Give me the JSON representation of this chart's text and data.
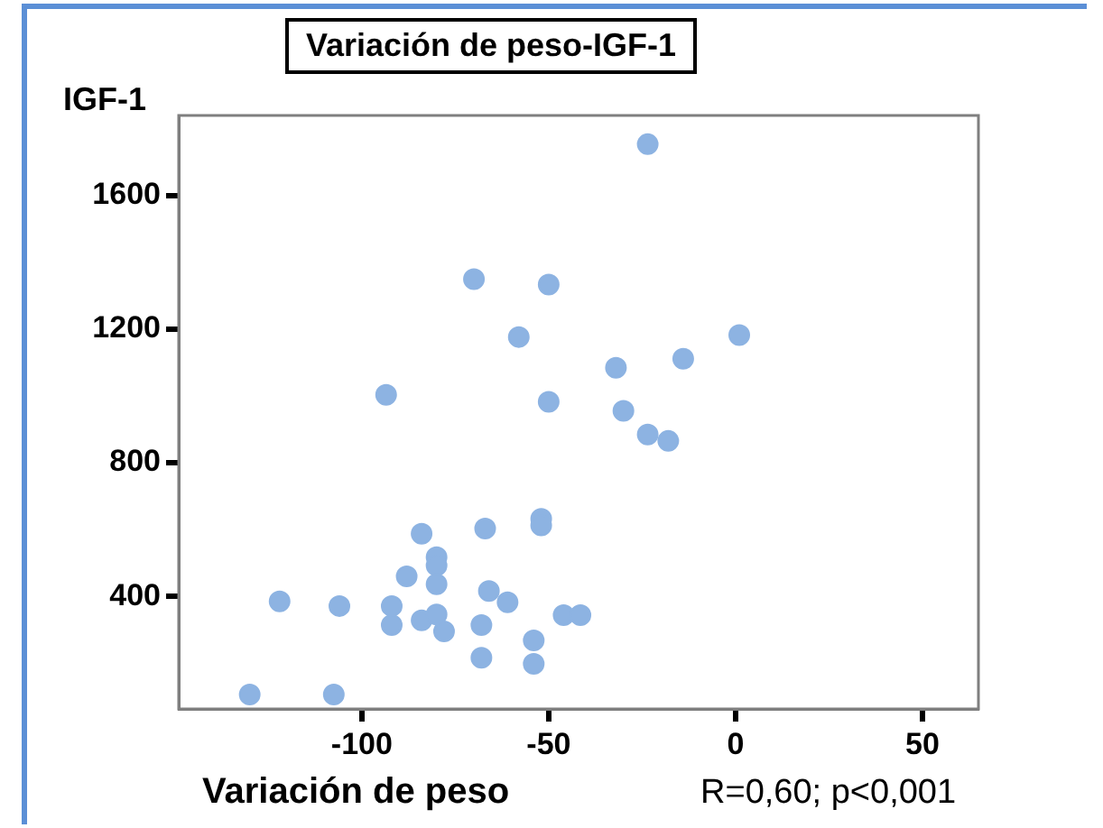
{
  "chart_data": {
    "type": "scatter",
    "title": "Variación de peso-IGF-1",
    "xlabel": "Variación de peso",
    "ylabel": "IGF-1",
    "annotations": [
      "R=0,60; p<0,001"
    ],
    "xlim": [
      -149,
      65
    ],
    "xticks": [
      -100,
      -50,
      0,
      50
    ],
    "ylim": [
      63,
      1839
    ],
    "yticks": [
      400,
      800,
      1200,
      1600
    ],
    "grid": false,
    "legend": false,
    "marker": "circle",
    "series": [
      {
        "color": "#8db3e2",
        "x": [
          -23.5,
          -70,
          -50,
          -58,
          1,
          -14,
          -32,
          -93.5,
          -50,
          -30,
          -23.5,
          -18,
          -84,
          -67,
          -52,
          -52,
          -80,
          -80,
          -88,
          -80,
          -66,
          -61,
          -106,
          -92,
          -92,
          -84,
          -80,
          -78,
          -68,
          -46,
          -41.5,
          -54,
          -68,
          -54,
          -107.5,
          -122,
          -130
        ],
        "values": [
          1753,
          1349,
          1333,
          1176,
          1182,
          1111,
          1084,
          1003,
          982,
          955,
          884,
          865,
          587,
          603,
          632,
          612,
          517,
          492,
          460,
          436,
          416,
          382,
          371,
          371,
          314,
          328,
          346,
          295,
          314,
          344,
          344,
          268,
          216,
          198,
          106,
          385,
          106
        ]
      }
    ]
  }
}
